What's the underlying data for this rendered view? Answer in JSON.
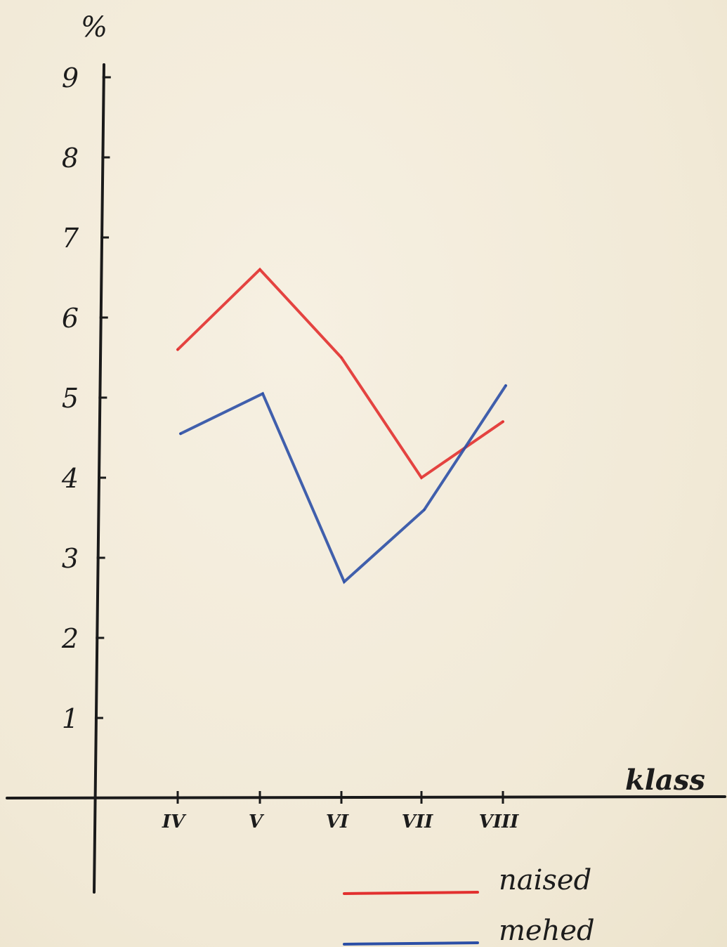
{
  "chart_data": {
    "type": "line",
    "title": "",
    "xlabel": "klass",
    "ylabel": "%",
    "categories": [
      "IV",
      "V",
      "VI",
      "VII",
      "VIII"
    ],
    "ylim": [
      0,
      9
    ],
    "yticks": [
      "1",
      "2",
      "3",
      "4",
      "5",
      "6",
      "7",
      "8",
      "9"
    ],
    "grid": false,
    "legend": "bottom-right",
    "series": [
      {
        "name": "naised",
        "color": "#e2302f",
        "values": [
          5.6,
          6.6,
          5.5,
          4.0,
          4.7
        ]
      },
      {
        "name": "mehed",
        "color": "#2c4fa6",
        "values": [
          4.55,
          5.05,
          2.7,
          3.6,
          5.15
        ]
      }
    ]
  }
}
